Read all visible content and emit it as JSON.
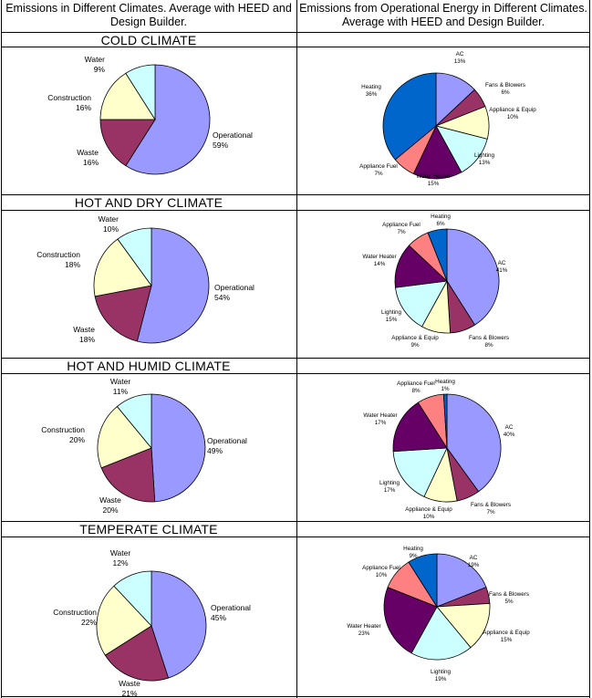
{
  "header": {
    "left": "Emissions in Different Climates. Average with HEED and Design Builder.",
    "right": "Emissions from Operational Energy in Different Climates. Average with HEED and Design Builder."
  },
  "colors": {
    "Operational": "#9999ff",
    "Waste": "#993366",
    "Construction": "#ffffcc",
    "Water": "#ccffff",
    "AC": "#9999ff",
    "Fans & Blowers": "#993366",
    "Appliance & Equip": "#ffffcc",
    "Lighting": "#ccffff",
    "Water Heater": "#660066",
    "Appliance Fuel": "#ff8080",
    "Heating": "#0066cc"
  },
  "chart_data": [
    {
      "type": "pie",
      "climate": "COLD CLIMATE",
      "panel": "left",
      "slices": [
        {
          "name": "Operational",
          "label": "Operational",
          "pct": "59%",
          "value": 59
        },
        {
          "name": "Waste",
          "label": "Waste",
          "pct": "16%",
          "value": 16
        },
        {
          "name": "Construction",
          "label": "Construction",
          "pct": "16%",
          "value": 16
        },
        {
          "name": "Water",
          "label": "Water",
          "pct": "9%",
          "value": 9
        }
      ]
    },
    {
      "type": "pie",
      "climate": "COLD CLIMATE",
      "panel": "right",
      "slices": [
        {
          "name": "AC",
          "label": "AC",
          "pct": "13%",
          "value": 13
        },
        {
          "name": "Fans & Blowers",
          "label": "Fans & Blowers",
          "pct": "6%",
          "value": 6
        },
        {
          "name": "Appliance & Equip",
          "label": "Appliance & Equip",
          "pct": "10%",
          "value": 10
        },
        {
          "name": "Lighting",
          "label": "Lighting",
          "pct": "13%",
          "value": 13
        },
        {
          "name": "Water Heater",
          "label": "Water Heater",
          "pct": "15%",
          "value": 15
        },
        {
          "name": "Appliance Fuel",
          "label": "Appliance Fuel",
          "pct": "7%",
          "value": 7
        },
        {
          "name": "Heating",
          "label": "Heating",
          "pct": "36%",
          "value": 36
        }
      ]
    },
    {
      "type": "pie",
      "climate": "HOT AND DRY CLIMATE",
      "panel": "left",
      "slices": [
        {
          "name": "Operational",
          "label": "Operational",
          "pct": "54%",
          "value": 54
        },
        {
          "name": "Waste",
          "label": "Waste",
          "pct": "18%",
          "value": 18
        },
        {
          "name": "Construction",
          "label": "Construction",
          "pct": "18%",
          "value": 18
        },
        {
          "name": "Water",
          "label": "Water",
          "pct": "10%",
          "value": 10
        }
      ]
    },
    {
      "type": "pie",
      "climate": "HOT AND DRY CLIMATE",
      "panel": "right",
      "slices": [
        {
          "name": "AC",
          "label": "AC",
          "pct": "41%",
          "value": 41
        },
        {
          "name": "Fans & Blowers",
          "label": "Fans & Blowers",
          "pct": "8%",
          "value": 8
        },
        {
          "name": "Appliance & Equip",
          "label": "Appliance & Equip",
          "pct": "9%",
          "value": 9
        },
        {
          "name": "Lighting",
          "label": "Lighting",
          "pct": "15%",
          "value": 15
        },
        {
          "name": "Water Heater",
          "label": "Water Heater",
          "pct": "14%",
          "value": 14
        },
        {
          "name": "Appliance Fuel",
          "label": "Appliance Fuel",
          "pct": "7%",
          "value": 7
        },
        {
          "name": "Heating",
          "label": "Heating",
          "pct": "6%",
          "value": 6
        }
      ]
    },
    {
      "type": "pie",
      "climate": "HOT AND HUMID CLIMATE",
      "panel": "left",
      "slices": [
        {
          "name": "Operational",
          "label": "Operational",
          "pct": "49%",
          "value": 49
        },
        {
          "name": "Waste",
          "label": "Waste",
          "pct": "20%",
          "value": 20
        },
        {
          "name": "Construction",
          "label": "Construction",
          "pct": "20%",
          "value": 20
        },
        {
          "name": "Water",
          "label": "Water",
          "pct": "11%",
          "value": 11
        }
      ]
    },
    {
      "type": "pie",
      "climate": "HOT AND HUMID CLIMATE",
      "panel": "right",
      "slices": [
        {
          "name": "AC",
          "label": "AC",
          "pct": "40%",
          "value": 40
        },
        {
          "name": "Fans & Blowers",
          "label": "Fans & Blowers",
          "pct": "7%",
          "value": 7
        },
        {
          "name": "Appliance & Equip",
          "label": "Appliance & Equip",
          "pct": "10%",
          "value": 10
        },
        {
          "name": "Lighting",
          "label": "Lighting",
          "pct": "17%",
          "value": 17
        },
        {
          "name": "Water Heater",
          "label": "Water Heater",
          "pct": "17%",
          "value": 17
        },
        {
          "name": "Appliance Fuel",
          "label": "Appliance Fuel",
          "pct": "8%",
          "value": 8
        },
        {
          "name": "Heating",
          "label": "Heating",
          "pct": "1%",
          "value": 1
        }
      ]
    },
    {
      "type": "pie",
      "climate": "TEMPERATE CLIMATE",
      "panel": "left",
      "slices": [
        {
          "name": "Operational",
          "label": "Operational",
          "pct": "45%",
          "value": 45
        },
        {
          "name": "Waste",
          "label": "Waste",
          "pct": "21%",
          "value": 21
        },
        {
          "name": "Construction",
          "label": "Construction",
          "pct": "22%",
          "value": 22
        },
        {
          "name": "Water",
          "label": "Water",
          "pct": "12%",
          "value": 12
        }
      ]
    },
    {
      "type": "pie",
      "climate": "TEMPERATE CLIMATE",
      "panel": "right",
      "slices": [
        {
          "name": "AC",
          "label": "AC",
          "pct": "19%",
          "value": 19
        },
        {
          "name": "Fans & Blowers",
          "label": "Fans & Blowers",
          "pct": "5%",
          "value": 5
        },
        {
          "name": "Appliance & Equip",
          "label": "Appliance & Equip",
          "pct": "15%",
          "value": 15
        },
        {
          "name": "Lighting",
          "label": "Lighting",
          "pct": "19%",
          "value": 19
        },
        {
          "name": "Water Heater",
          "label": "Water Heater",
          "pct": "23%",
          "value": 23
        },
        {
          "name": "Appliance Fuel",
          "label": "Appliance Fuel",
          "pct": "10%",
          "value": 10
        },
        {
          "name": "Heating",
          "label": "Heating",
          "pct": "9%",
          "value": 9
        }
      ]
    }
  ]
}
